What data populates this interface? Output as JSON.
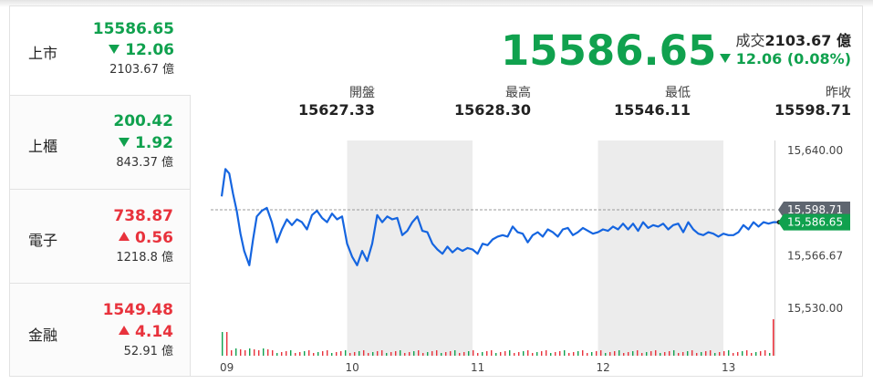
{
  "indices": [
    {
      "name": "上市",
      "value": "15586.65",
      "change": "12.06",
      "direction": "down",
      "volume": "2103.67 億"
    },
    {
      "name": "上櫃",
      "value": "200.42",
      "change": "1.92",
      "direction": "down",
      "volume": "843.37 億"
    },
    {
      "name": "電子",
      "value": "738.87",
      "change": "0.56",
      "direction": "up",
      "volume": "1218.8 億"
    },
    {
      "name": "金融",
      "value": "1549.48",
      "change": "4.14",
      "direction": "up",
      "volume": "52.91 億"
    }
  ],
  "header": {
    "price": "15586.65",
    "turnover_label": "成交",
    "turnover_value": "2103.67 億",
    "change_text": "12.06 (0.08%)"
  },
  "stats": [
    {
      "label": "開盤",
      "value": "15627.33"
    },
    {
      "label": "最高",
      "value": "15628.30"
    },
    {
      "label": "最低",
      "value": "15546.11"
    },
    {
      "label": "昨收",
      "value": "15598.71"
    }
  ],
  "colors": {
    "up": "#e8323c",
    "down": "#10a14e",
    "line": "#1565e0",
    "band": "#ececec"
  },
  "chart_data": {
    "type": "line",
    "x_ticks": [
      "09",
      "10",
      "11",
      "12",
      "13"
    ],
    "y_ticks": [
      "15,640.00",
      "15,566.67",
      "15,530.00"
    ],
    "ylim": [
      15530,
      15640
    ],
    "prev_close": 15598.71,
    "prev_close_label": "15,598.71",
    "last_label": "15,586.65",
    "series": [
      {
        "x": [
          9.0,
          9.03,
          9.06,
          9.09,
          9.12,
          9.15,
          9.18,
          9.22,
          9.25,
          9.28,
          9.32,
          9.36,
          9.4,
          9.44,
          9.48,
          9.52,
          9.56,
          9.6,
          9.64,
          9.68,
          9.72,
          9.76,
          9.8,
          9.84,
          9.88,
          9.92,
          9.96,
          10.0,
          10.04,
          10.08,
          10.12,
          10.16,
          10.2,
          10.24,
          10.28,
          10.32,
          10.36,
          10.4,
          10.44,
          10.48,
          10.52,
          10.56,
          10.6,
          10.64,
          10.68,
          10.72,
          10.76,
          10.8,
          10.84,
          10.88,
          10.92,
          10.96,
          11.0,
          11.04,
          11.08,
          11.12,
          11.16,
          11.2,
          11.24,
          11.28,
          11.32,
          11.36,
          11.4,
          11.44,
          11.48,
          11.52,
          11.56,
          11.6,
          11.64,
          11.68,
          11.72,
          11.76,
          11.8,
          11.84,
          11.88,
          11.92,
          11.96,
          12.0,
          12.04,
          12.08,
          12.12,
          12.16,
          12.2,
          12.24,
          12.28,
          12.32,
          12.36,
          12.4,
          12.44,
          12.48,
          12.52,
          12.56,
          12.6,
          12.64,
          12.68,
          12.72,
          12.76,
          12.8,
          12.84,
          12.88,
          12.92,
          12.96,
          13.0,
          13.04,
          13.08,
          13.12,
          13.16,
          13.2,
          13.24,
          13.28,
          13.32,
          13.36,
          13.4,
          13.43
        ],
        "y": [
          15608,
          15627,
          15624,
          15610,
          15598,
          15582,
          15570,
          15560,
          15578,
          15594,
          15598,
          15600,
          15590,
          15576,
          15585,
          15592,
          15588,
          15592,
          15590,
          15585,
          15595,
          15598,
          15593,
          15590,
          15596,
          15592,
          15594,
          15575,
          15566,
          15560,
          15570,
          15563,
          15575,
          15595,
          15590,
          15594,
          15592,
          15593,
          15581,
          15584,
          15590,
          15594,
          15584,
          15583,
          15575,
          15571,
          15568,
          15573,
          15569,
          15572,
          15570,
          15572,
          15571,
          15568,
          15575,
          15574,
          15578,
          15580,
          15581,
          15580,
          15587,
          15583,
          15582,
          15576,
          15581,
          15583,
          15580,
          15585,
          15583,
          15580,
          15585,
          15586,
          15581,
          15583,
          15586,
          15584,
          15582,
          15583,
          15585,
          15584,
          15587,
          15585,
          15589,
          15585,
          15589,
          15584,
          15590,
          15586,
          15588,
          15587,
          15589,
          15585,
          15588,
          15589,
          15583,
          15590,
          15585,
          15582,
          15581,
          15583,
          15582,
          15580,
          15582,
          15581,
          15581,
          15583,
          15588,
          15585,
          15590,
          15587,
          15590,
          15589,
          15590,
          15590
        ]
      }
    ]
  }
}
